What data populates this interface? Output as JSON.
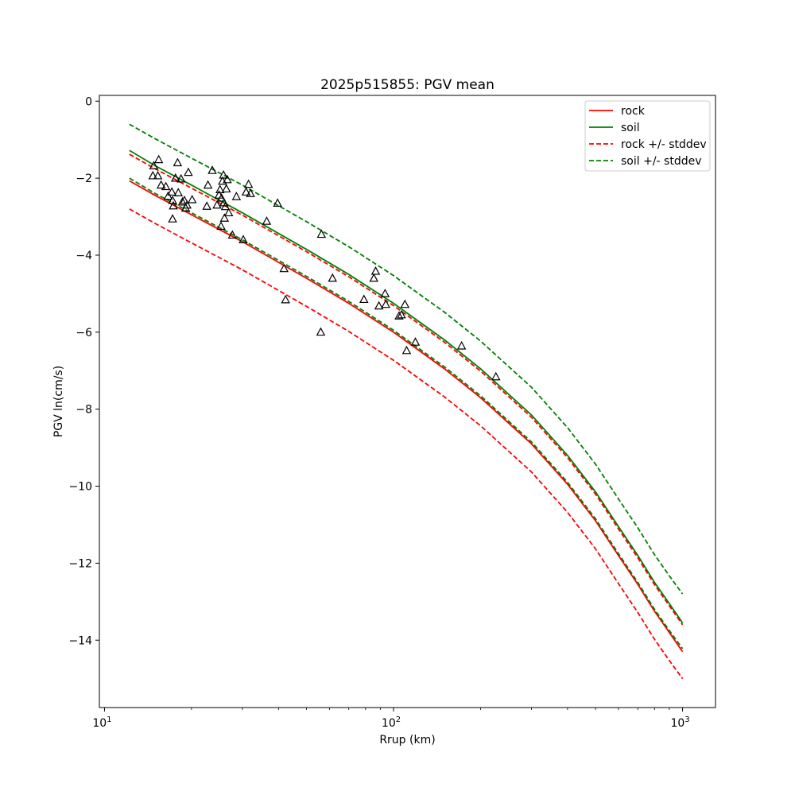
{
  "chart_data": {
    "type": "line",
    "title": "2025p515855: PGV mean",
    "xlabel": "Rrup (km)",
    "ylabel": "PGV ln(cm/s)",
    "xscale": "log",
    "xlim": [
      9.6,
      1300
    ],
    "ylim": [
      -15.75,
      0.15
    ],
    "xticks": [
      {
        "value": 10,
        "base": "10",
        "exp": "1"
      },
      {
        "value": 100,
        "base": "10",
        "exp": "2"
      },
      {
        "value": 1000,
        "base": "10",
        "exp": "3"
      }
    ],
    "yticks": [
      0,
      -2,
      -4,
      -6,
      -8,
      -10,
      -12,
      -14
    ],
    "ytick_labels": [
      "0",
      "−2",
      "−4",
      "−6",
      "−8",
      "−10",
      "−12",
      "−14"
    ],
    "grid": false,
    "legend_position": "top-right",
    "x": [
      12.2,
      15,
      20,
      30,
      50,
      70,
      100,
      150,
      200,
      300,
      400,
      500,
      600,
      700,
      800,
      900,
      1000
    ],
    "series": [
      {
        "name": "rock",
        "style": "solid",
        "color": "#ff0000",
        "values": [
          -2.07,
          -2.45,
          -2.95,
          -3.65,
          -4.6,
          -5.25,
          -6.0,
          -6.95,
          -7.7,
          -8.9,
          -9.95,
          -10.9,
          -11.8,
          -12.55,
          -13.25,
          -13.8,
          -14.3
        ]
      },
      {
        "name": "soil",
        "style": "solid",
        "color": "#008000",
        "values": [
          -1.28,
          -1.68,
          -2.18,
          -2.9,
          -3.85,
          -4.5,
          -5.25,
          -6.2,
          -6.95,
          -8.15,
          -9.2,
          -10.15,
          -11.05,
          -11.8,
          -12.5,
          -13.05,
          -13.55
        ]
      },
      {
        "name": "rock +/- stddev",
        "style": "dashed",
        "color": "#ff0000",
        "values": [
          -2.8,
          -3.18,
          -3.68,
          -4.38,
          -5.33,
          -5.98,
          -6.73,
          -7.68,
          -8.43,
          -9.63,
          -10.68,
          -11.63,
          -12.53,
          -13.28,
          -13.98,
          -14.53,
          -15.0
        ]
      },
      {
        "name": "",
        "style": "dashed",
        "color": "#ff0000",
        "values": [
          -1.38,
          -1.76,
          -2.26,
          -2.96,
          -3.91,
          -4.56,
          -5.31,
          -6.26,
          -7.01,
          -8.21,
          -9.26,
          -10.21,
          -11.11,
          -11.86,
          -12.56,
          -13.11,
          -13.6
        ]
      },
      {
        "name": "soil +/- stddev",
        "style": "dashed",
        "color": "#008000",
        "values": [
          -2.0,
          -2.4,
          -2.9,
          -3.6,
          -4.55,
          -5.2,
          -5.95,
          -6.9,
          -7.65,
          -8.85,
          -9.9,
          -10.85,
          -11.75,
          -12.5,
          -13.2,
          -13.75,
          -14.22
        ]
      },
      {
        "name": "",
        "style": "dashed",
        "color": "#008000",
        "values": [
          -0.6,
          -0.98,
          -1.48,
          -2.18,
          -3.13,
          -3.78,
          -4.53,
          -5.48,
          -6.23,
          -7.43,
          -8.48,
          -9.43,
          -10.33,
          -11.08,
          -11.78,
          -12.33,
          -12.8
        ]
      }
    ],
    "observations": [
      {
        "x": 14.8,
        "y": -1.68
      },
      {
        "x": 15.4,
        "y": -1.52
      },
      {
        "x": 14.7,
        "y": -1.94
      },
      {
        "x": 15.3,
        "y": -1.94
      },
      {
        "x": 15.7,
        "y": -2.18
      },
      {
        "x": 16.3,
        "y": -2.22
      },
      {
        "x": 16.6,
        "y": -2.47
      },
      {
        "x": 17.1,
        "y": -2.36
      },
      {
        "x": 17.2,
        "y": -2.58
      },
      {
        "x": 17.3,
        "y": -2.72
      },
      {
        "x": 17.2,
        "y": -3.06
      },
      {
        "x": 17.6,
        "y": -2.0
      },
      {
        "x": 17.9,
        "y": -1.6
      },
      {
        "x": 18.0,
        "y": -2.38
      },
      {
        "x": 18.4,
        "y": -2.02
      },
      {
        "x": 18.6,
        "y": -2.62
      },
      {
        "x": 18.9,
        "y": -2.58
      },
      {
        "x": 19.1,
        "y": -2.78
      },
      {
        "x": 19.3,
        "y": -2.7
      },
      {
        "x": 19.5,
        "y": -1.85
      },
      {
        "x": 20.1,
        "y": -2.56
      },
      {
        "x": 22.6,
        "y": -2.73
      },
      {
        "x": 22.8,
        "y": -2.18
      },
      {
        "x": 23.6,
        "y": -1.8
      },
      {
        "x": 24.5,
        "y": -2.7
      },
      {
        "x": 24.9,
        "y": -2.44
      },
      {
        "x": 25.1,
        "y": -2.3
      },
      {
        "x": 25.3,
        "y": -3.25
      },
      {
        "x": 25.4,
        "y": -2.52
      },
      {
        "x": 25.6,
        "y": -2.08
      },
      {
        "x": 25.8,
        "y": -1.92
      },
      {
        "x": 25.9,
        "y": -2.64
      },
      {
        "x": 26.0,
        "y": -3.04
      },
      {
        "x": 26.2,
        "y": -2.74
      },
      {
        "x": 26.4,
        "y": -2.28
      },
      {
        "x": 26.6,
        "y": -2.04
      },
      {
        "x": 26.9,
        "y": -2.9
      },
      {
        "x": 27.7,
        "y": -3.48
      },
      {
        "x": 28.6,
        "y": -2.48
      },
      {
        "x": 30.2,
        "y": -3.6
      },
      {
        "x": 30.9,
        "y": -2.36
      },
      {
        "x": 31.5,
        "y": -2.16
      },
      {
        "x": 32.0,
        "y": -2.4
      },
      {
        "x": 36.4,
        "y": -3.12
      },
      {
        "x": 39.7,
        "y": -2.65
      },
      {
        "x": 41.8,
        "y": -4.35
      },
      {
        "x": 42.3,
        "y": -5.16
      },
      {
        "x": 56.3,
        "y": -3.46
      },
      {
        "x": 56.0,
        "y": -6.0
      },
      {
        "x": 61.5,
        "y": -4.6
      },
      {
        "x": 79.0,
        "y": -5.15
      },
      {
        "x": 85.5,
        "y": -4.6
      },
      {
        "x": 86.7,
        "y": -4.42
      },
      {
        "x": 89.0,
        "y": -5.32
      },
      {
        "x": 93.5,
        "y": -5.0
      },
      {
        "x": 94.0,
        "y": -5.28
      },
      {
        "x": 104.5,
        "y": -5.58
      },
      {
        "x": 106.5,
        "y": -5.55
      },
      {
        "x": 109.5,
        "y": -5.28
      },
      {
        "x": 111.0,
        "y": -6.48
      },
      {
        "x": 119.0,
        "y": -6.26
      },
      {
        "x": 172.0,
        "y": -6.36
      },
      {
        "x": 226.0,
        "y": -7.16
      }
    ]
  }
}
